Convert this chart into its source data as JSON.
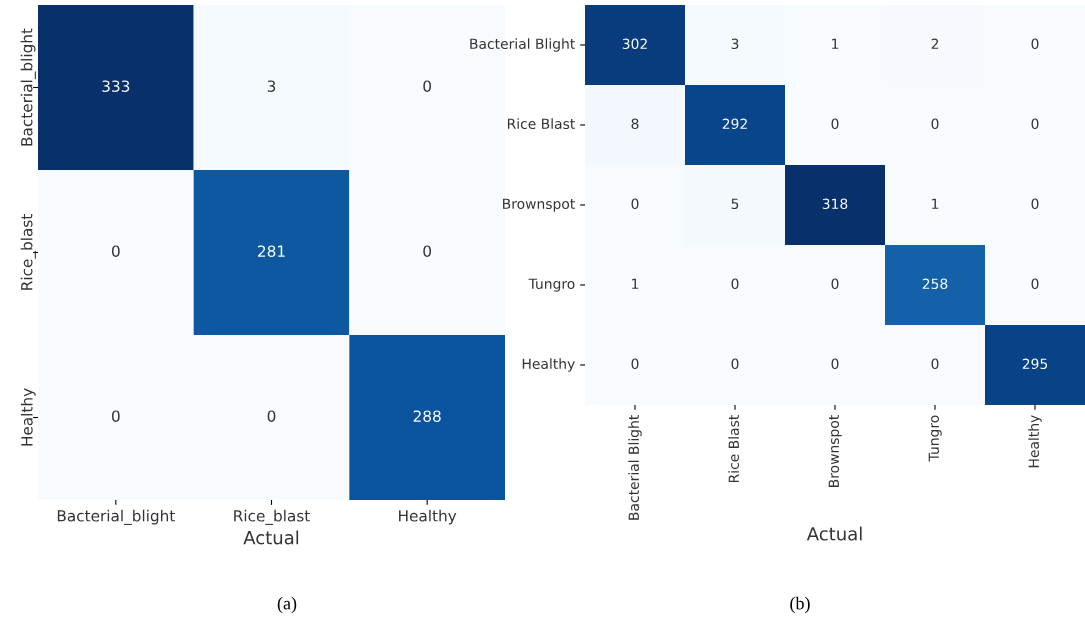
{
  "chart_data": [
    {
      "type": "heatmap",
      "categories": [
        "Bacterial_blight",
        "Rice_blast",
        "Healthy"
      ],
      "y_categories": [
        "Bacterial_blight",
        "Rice_blast",
        "Healthy"
      ],
      "cells": [
        [
          333,
          3,
          0
        ],
        [
          0,
          281,
          0
        ],
        [
          0,
          0,
          288
        ]
      ],
      "xlabel": "Actual",
      "data_labels": true,
      "annotations": [
        "(a)"
      ]
    },
    {
      "type": "heatmap",
      "categories": [
        "Bacterial Blight",
        "Rice Blast",
        "Brownspot",
        "Tungro",
        "Healthy"
      ],
      "y_categories": [
        "Bacterial Blight",
        "Rice Blast",
        "Brownspot",
        "Tungro",
        "Healthy"
      ],
      "cells": [
        [
          302,
          3,
          1,
          2,
          0
        ],
        [
          8,
          292,
          0,
          0,
          0
        ],
        [
          0,
          5,
          318,
          1,
          0
        ],
        [
          1,
          0,
          0,
          258,
          0
        ],
        [
          0,
          0,
          0,
          0,
          295
        ]
      ],
      "xlabel": "Actual",
      "data_labels": true,
      "annotations": [
        "(b)"
      ]
    }
  ]
}
